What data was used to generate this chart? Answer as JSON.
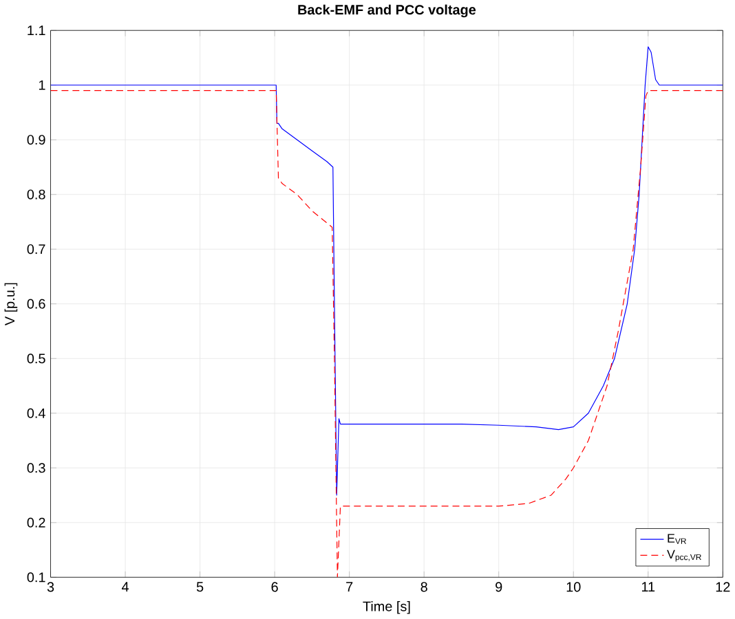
{
  "chart_data": {
    "type": "line",
    "title": "Back-EMF and PCC voltage",
    "xlabel": "Time [s]",
    "ylabel": "V [p.u.]",
    "xlim": [
      3,
      12
    ],
    "ylim": [
      0.1,
      1.1
    ],
    "xticks": [
      3,
      4,
      5,
      6,
      7,
      8,
      9,
      10,
      11,
      12
    ],
    "yticks": [
      0.1,
      0.2,
      0.3,
      0.4,
      0.5,
      0.6,
      0.7,
      0.8,
      0.9,
      1,
      1.1
    ],
    "grid": true,
    "legend": "bottom right",
    "series": [
      {
        "name": "E$_{VR}$",
        "color": "#0000ff",
        "line_style": "solid",
        "x": [
          3,
          6.02,
          6.03,
          6.05,
          6.1,
          6.3,
          6.5,
          6.7,
          6.78,
          6.8,
          6.83,
          6.86,
          6.88,
          6.9,
          7.5,
          8.5,
          9.0,
          9.5,
          9.8,
          10.0,
          10.2,
          10.4,
          10.55,
          10.72,
          10.82,
          10.88,
          10.92,
          10.96,
          11.0,
          11.04,
          11.1,
          11.15,
          11.5,
          12
        ],
        "values": [
          1,
          1,
          0.93,
          0.93,
          0.92,
          0.9,
          0.88,
          0.86,
          0.85,
          0.6,
          0.25,
          0.39,
          0.38,
          0.38,
          0.38,
          0.38,
          0.378,
          0.375,
          0.37,
          0.375,
          0.4,
          0.45,
          0.5,
          0.6,
          0.7,
          0.8,
          0.9,
          1.0,
          1.07,
          1.06,
          1.01,
          1.0,
          1.0,
          1.0
        ]
      },
      {
        "name": "V$_{pcc,VR}$",
        "color": "#ff0000",
        "line_style": "dashed",
        "x": [
          3,
          6.02,
          6.05,
          6.1,
          6.3,
          6.5,
          6.77,
          6.8,
          6.84,
          6.88,
          6.9,
          8.0,
          9.0,
          9.4,
          9.7,
          9.9,
          10.0,
          10.2,
          10.45,
          10.6,
          10.8,
          10.9,
          10.97,
          11.0,
          11.5,
          12
        ],
        "values": [
          0.99,
          0.99,
          0.83,
          0.82,
          0.8,
          0.77,
          0.74,
          0.5,
          0.1,
          0.23,
          0.23,
          0.23,
          0.23,
          0.235,
          0.25,
          0.28,
          0.3,
          0.35,
          0.45,
          0.55,
          0.7,
          0.85,
          0.98,
          0.99,
          0.99,
          0.99
        ]
      }
    ]
  }
}
